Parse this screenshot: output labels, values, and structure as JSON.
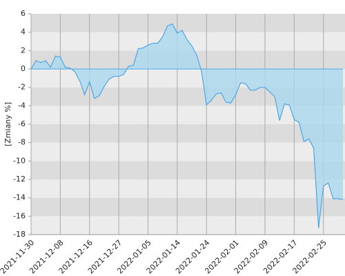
{
  "chart_data": {
    "type": "area",
    "y_label": "[Zmiany %]",
    "categories": [
      "2021-11-30",
      null,
      null,
      null,
      null,
      null,
      "2021-12-08",
      null,
      null,
      null,
      null,
      null,
      "2021-12-16",
      null,
      null,
      null,
      null,
      null,
      "2021-12-27",
      null,
      null,
      null,
      null,
      null,
      "2022-01-05",
      null,
      null,
      null,
      null,
      null,
      "2022-01-14",
      null,
      null,
      null,
      null,
      null,
      "2022-01-24",
      null,
      null,
      null,
      null,
      null,
      "2022-02-01",
      null,
      null,
      null,
      null,
      null,
      "2022-02-09",
      null,
      null,
      null,
      null,
      null,
      "2022-02-17",
      null,
      null,
      null,
      null,
      null,
      "2022-02-25",
      null,
      null,
      null,
      null
    ],
    "values": [
      0,
      0.9,
      0.7,
      0.9,
      0.2,
      1.4,
      1.3,
      0.2,
      0.1,
      -0.3,
      -1.3,
      -2.8,
      -1.4,
      -3.2,
      -2.9,
      -1.9,
      -1.1,
      -0.8,
      -0.8,
      -0.6,
      0.3,
      0.4,
      2.2,
      2.3,
      2.6,
      2.8,
      2.8,
      3.5,
      4.7,
      4.9,
      3.9,
      4.2,
      3.2,
      2.5,
      1.5,
      -0.3,
      -3.9,
      -3.4,
      -2.7,
      -2.6,
      -3.6,
      -3.7,
      -2.8,
      -1.5,
      -1.6,
      -2.3,
      -2.3,
      -2.0,
      -2.0,
      -2.5,
      -3.0,
      -5.6,
      -3.8,
      -3.9,
      -5.5,
      -5.8,
      -7.9,
      -7.6,
      -8.6,
      -17.3,
      -12.7,
      -12.4,
      -14.1,
      -14.1,
      -14.2
    ],
    "color": "#4ea6e6",
    "fill_color": "#a9d8ee",
    "ylim": [
      -18,
      6
    ],
    "yticks": [
      -18,
      -16,
      -14,
      -12,
      -10,
      -8,
      -6,
      -4,
      -2,
      0,
      2,
      4,
      6
    ],
    "band_colors": [
      "#dcdcdc",
      "#ececec"
    ],
    "grid": true
  }
}
